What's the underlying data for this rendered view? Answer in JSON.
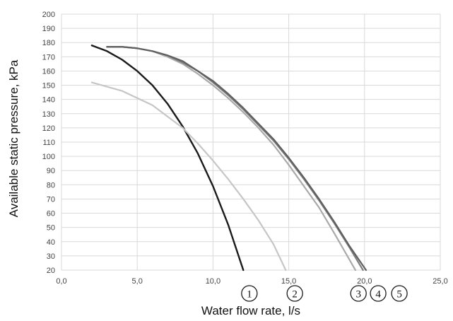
{
  "chart_data": {
    "type": "line",
    "title": "",
    "xlabel": "Water flow rate, l/s",
    "ylabel": "Available static pressure, kPa",
    "xlim": [
      0,
      25
    ],
    "ylim": [
      20,
      200
    ],
    "grid": {
      "horizontal": true,
      "vertical": true
    },
    "x_ticks": [
      0,
      5,
      10,
      15,
      20,
      25
    ],
    "x_tick_labels": [
      "0,0",
      "5,0",
      "10,0",
      "15,0",
      "20,0",
      "25,0"
    ],
    "y_ticks": [
      20,
      30,
      40,
      50,
      60,
      70,
      80,
      90,
      100,
      110,
      120,
      130,
      140,
      150,
      160,
      170,
      180,
      190,
      200
    ],
    "y_tick_labels": [
      "20",
      "30",
      "40",
      "50",
      "60",
      "70",
      "80",
      "90",
      "100",
      "110",
      "120",
      "130",
      "140",
      "150",
      "160",
      "170",
      "180",
      "190",
      "200"
    ],
    "series": [
      {
        "color": "#1a1a1a",
        "x": [
          2,
          3,
          4,
          5,
          6,
          7,
          8,
          9,
          10,
          11,
          12
        ],
        "y": [
          178,
          174,
          168,
          160,
          150,
          137,
          121,
          102,
          79,
          52,
          20
        ]
      },
      {
        "color": "#c6c6c6",
        "x": [
          2,
          4,
          6,
          8,
          9,
          10,
          11,
          12,
          13,
          14,
          14.8
        ],
        "y": [
          152,
          146,
          136,
          120,
          109,
          97,
          84,
          70,
          55,
          38,
          20
        ]
      },
      {
        "color": "#a9a9a9",
        "x": [
          3,
          4,
          5,
          6,
          7,
          8,
          9,
          10,
          11,
          12,
          13,
          14,
          15,
          16,
          17,
          18,
          19.4
        ],
        "y": [
          177,
          177,
          176,
          174,
          170,
          165,
          158,
          150,
          141,
          131,
          120,
          108,
          94,
          79,
          64,
          46,
          20
        ]
      },
      {
        "color": "#7d7d7d",
        "x": [
          3,
          4,
          5,
          6,
          7,
          8,
          9,
          10,
          11,
          12,
          13,
          14,
          15,
          16,
          17,
          18,
          19,
          19.9
        ],
        "y": [
          177,
          177,
          176,
          174,
          171,
          166,
          160,
          152,
          143,
          133,
          122,
          111,
          98,
          84,
          69,
          53,
          36,
          20
        ]
      },
      {
        "color": "#5f5f5f",
        "x": [
          3,
          4,
          5,
          6,
          7,
          8,
          9,
          10,
          11,
          12,
          13,
          14,
          15,
          16,
          17,
          18,
          19,
          20.1
        ],
        "y": [
          177,
          177,
          176,
          174,
          171,
          167,
          160,
          153,
          144,
          134,
          123,
          112,
          99,
          85,
          70,
          54,
          37,
          20
        ]
      }
    ],
    "curve_markers": [
      {
        "label": "1",
        "x": 12.4
      },
      {
        "label": "2",
        "x": 15.4
      },
      {
        "label": "3",
        "x": 19.6
      },
      {
        "label": "4",
        "x": 20.9
      },
      {
        "label": "5",
        "x": 22.3
      }
    ]
  }
}
